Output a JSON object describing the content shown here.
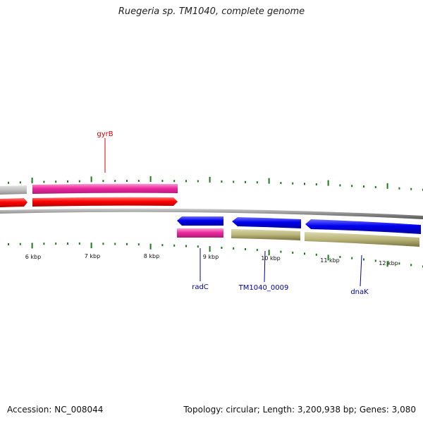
{
  "title": "Ruegeria sp. TM1040, complete genome",
  "accession_line": "Accession: NC_008044",
  "summary_line": "Topology: circular; Length: 3,200,938 bp; Genes: 3,080",
  "colors": {
    "forward_label": "#cc0000",
    "reverse_label": "#0000aa",
    "tick": "#1a7a1a",
    "backbone": "#8c8c8c",
    "cds_red": "#ff0000",
    "cds_blue": "#0000ee",
    "gene_magenta": "#ee2aa0",
    "gene_gray": "#c0c0c0",
    "gene_olive": "#b8b47a"
  },
  "scale_labels": [
    "6 kbp",
    "7 kbp",
    "8 kbp",
    "9 kbp",
    "10 kbp",
    "11 kbp",
    "12 kbp"
  ],
  "features": [
    {
      "name": "gray-gene",
      "track": "forward-gene",
      "strand": "+",
      "color": "gene_gray"
    },
    {
      "name": "red-cds",
      "track": "forward-cds",
      "strand": "+",
      "color": "cds_red"
    },
    {
      "name": "gyrB-gene",
      "track": "forward-gene",
      "strand": "+",
      "color": "gene_magenta"
    },
    {
      "name": "gyrB-cds",
      "track": "forward-cds",
      "strand": "+",
      "color": "cds_red"
    },
    {
      "name": "radC-cds",
      "track": "reverse-cds",
      "strand": "-",
      "color": "cds_blue"
    },
    {
      "name": "radC-gene",
      "track": "reverse-gene",
      "strand": "-",
      "color": "gene_magenta"
    },
    {
      "name": "TM1040_0009-cds",
      "track": "reverse-cds",
      "strand": "-",
      "color": "cds_blue"
    },
    {
      "name": "TM1040_0009-gene",
      "track": "reverse-gene",
      "strand": "-",
      "color": "gene_olive"
    },
    {
      "name": "dnaK-cds",
      "track": "reverse-cds",
      "strand": "-",
      "color": "cds_blue"
    },
    {
      "name": "dnaK-gene",
      "track": "reverse-gene",
      "strand": "-",
      "color": "gene_olive"
    }
  ],
  "gene_labels": [
    {
      "text": "gyrB",
      "strand": "+"
    },
    {
      "text": "radC",
      "strand": "-"
    },
    {
      "text": "TM1040_0009",
      "strand": "-"
    },
    {
      "text": "dnaK",
      "strand": "-"
    }
  ]
}
